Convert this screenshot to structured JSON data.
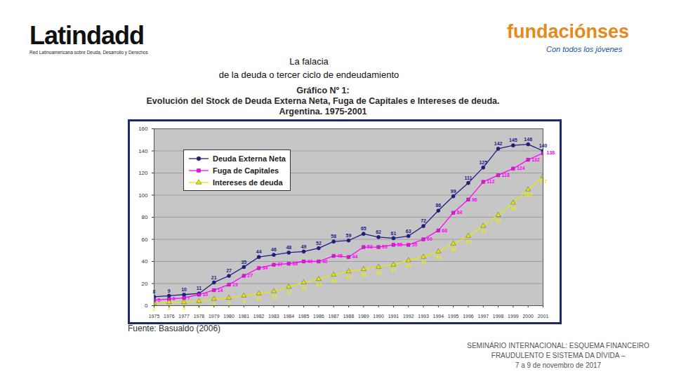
{
  "header": {
    "left_brand": {
      "name": "Latindadd",
      "tagline": "Red Latinoamericana sobre Deuda, Desarrollo y Derechos"
    },
    "right_brand": {
      "name": "fundaciónses",
      "tagline": "Con todos los jóvenes"
    },
    "title_lines": [
      "La falacia",
      "de la deuda o tercer ciclo de endeudamiento"
    ]
  },
  "footer": {
    "lines": [
      "SEMINÁRIO INTERNACIONAL: ESQUEMA FINANCEIRO",
      "FRAUDULENTO E SISTEMA DA DÍVIDA –",
      "7 a 9 de novembro de 2017"
    ]
  },
  "chart_data": {
    "type": "line",
    "title": "Gráfico Nº 1:",
    "subtitle": "Evolución del Stock de Deuda Externa Neta, Fuga de Capitales e Intereses de deuda. Argentina. 1975-2001",
    "source": "Fuente: Basualdo (2006)",
    "x": [
      1975,
      1976,
      1977,
      1978,
      1979,
      1980,
      1981,
      1982,
      1983,
      1984,
      1985,
      1986,
      1987,
      1988,
      1989,
      1990,
      1991,
      1992,
      1993,
      1994,
      1995,
      1996,
      1997,
      1998,
      1999,
      2000,
      2001
    ],
    "xlim": [
      1975,
      2001
    ],
    "xticks": [
      1975,
      1976,
      1977,
      1978,
      1979,
      1980,
      1981,
      1982,
      1983,
      1984,
      1985,
      1986,
      1987,
      1988,
      1989,
      1990,
      1991,
      1992,
      1993,
      1994,
      1995,
      1996,
      1997,
      1998,
      1999,
      2000,
      2001
    ],
    "ylim": [
      0,
      160
    ],
    "yticks": [
      0,
      20,
      40,
      60,
      80,
      100,
      120,
      140,
      160
    ],
    "grid": true,
    "legend": "top-left",
    "data_labels": true,
    "series": [
      {
        "name": "Deuda Externa Neta",
        "color": "#1c1c8a",
        "marker": "circle",
        "values": [
          8,
          9,
          10,
          11,
          21,
          27,
          35,
          44,
          46,
          48,
          49,
          52,
          58,
          59,
          65,
          62,
          61,
          63,
          72,
          86,
          99,
          111,
          125,
          142,
          145,
          146,
          140
        ]
      },
      {
        "name": "Fuga de Capitales",
        "color": "#ff00ff",
        "marker": "square",
        "values": [
          5,
          6,
          7,
          10,
          14,
          19,
          27,
          34,
          37,
          38,
          40,
          40,
          45,
          44,
          53,
          53,
          55,
          55,
          60,
          68,
          84,
          96,
          112,
          118,
          124,
          132,
          138
        ]
      },
      {
        "name": "Intereses de deuda",
        "color": "#e8e800",
        "marker": "triangle",
        "values": [
          2,
          3,
          3,
          4,
          6,
          7,
          9,
          11,
          13,
          17,
          21,
          24,
          28,
          31,
          33,
          35,
          37,
          41,
          44,
          49,
          56,
          63,
          72,
          82,
          93,
          105,
          117
        ]
      }
    ]
  }
}
